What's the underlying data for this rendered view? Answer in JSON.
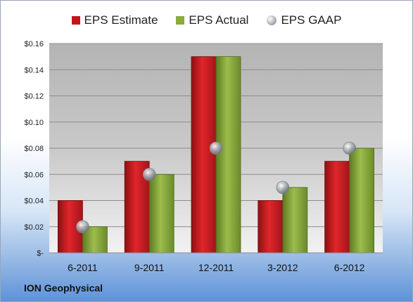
{
  "company": "ION Geophysical",
  "chart_data": {
    "type": "bar",
    "categories": [
      "6-2011",
      "9-2011",
      "12-2011",
      "3-2012",
      "6-2012"
    ],
    "series": [
      {
        "name": "EPS Estimate",
        "kind": "bar",
        "color": "#c0171c",
        "values": [
          0.04,
          0.07,
          0.15,
          0.04,
          0.07
        ]
      },
      {
        "name": "EPS Actual",
        "kind": "bar",
        "color": "#8bab3b",
        "values": [
          0.02,
          0.06,
          0.15,
          0.05,
          0.08
        ]
      },
      {
        "name": "EPS GAAP",
        "kind": "marker",
        "color": "#9aa0a8",
        "values": [
          0.02,
          0.06,
          0.08,
          0.05,
          0.08
        ]
      }
    ],
    "yticks": [
      "$-",
      "$0.02",
      "$0.04",
      "$0.06",
      "$0.08",
      "$0.10",
      "$0.12",
      "$0.14",
      "$0.16"
    ],
    "ylim": [
      0,
      0.16
    ],
    "grid": true,
    "legend": "top"
  }
}
